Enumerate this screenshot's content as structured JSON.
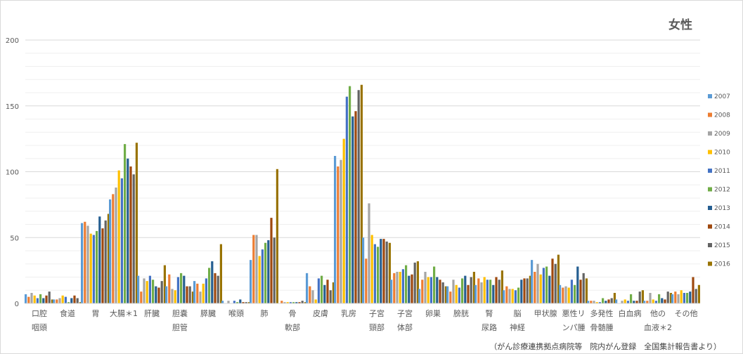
{
  "chart_data": {
    "type": "bar",
    "title": "女性",
    "source_note": "（がん診療連携拠点病院等　院内がん登録　全国集計報告書より）",
    "ylim": [
      0,
      200
    ],
    "yticks": [
      0,
      50,
      100,
      150,
      200
    ],
    "grid": true,
    "legend_position": "right",
    "categories": [
      [
        "口腔",
        "咽頭"
      ],
      [
        "食道"
      ],
      [
        "胃"
      ],
      [
        "大腸＊1"
      ],
      [
        "肝臓"
      ],
      [
        "胆嚢",
        "胆管"
      ],
      [
        "膵臓"
      ],
      [
        "喉頭"
      ],
      [
        "肺"
      ],
      [
        "骨",
        "軟部"
      ],
      [
        "皮膚"
      ],
      [
        "乳房"
      ],
      [
        "子宮",
        "頸部"
      ],
      [
        "子宮",
        "体部"
      ],
      [
        "卵巣"
      ],
      [
        "膀胱"
      ],
      [
        "腎",
        "尿路"
      ],
      [
        "脳",
        "神経"
      ],
      [
        "甲状腺"
      ],
      [
        "悪性リ",
        "ンパ腫"
      ],
      [
        "多発性",
        "骨髄腫"
      ],
      [
        "白血病"
      ],
      [
        "他の",
        "血液＊2"
      ],
      [
        "その他"
      ]
    ],
    "series": [
      {
        "name": "2007",
        "color": "#5B9BD5",
        "values": [
          7,
          3,
          61,
          79,
          21,
          13,
          17,
          2,
          33,
          0,
          23,
          112,
          50,
          18,
          11,
          13,
          14,
          10,
          33,
          14,
          2,
          3,
          2,
          7
        ]
      },
      {
        "name": "2008",
        "color": "#ED7D31",
        "values": [
          5,
          3,
          62,
          83,
          9,
          22,
          15,
          0,
          52,
          2,
          13,
          104,
          34,
          23,
          18,
          9,
          19,
          13,
          24,
          12,
          2,
          0,
          2,
          9
        ]
      },
      {
        "name": "2009",
        "color": "#A5A5A5",
        "values": [
          8,
          4,
          59,
          88,
          19,
          11,
          9,
          2,
          52,
          1,
          10,
          109,
          76,
          24,
          24,
          18,
          16,
          11,
          30,
          13,
          2,
          2,
          8,
          7
        ]
      },
      {
        "name": "2010",
        "color": "#FFC000",
        "values": [
          6,
          6,
          53,
          101,
          17,
          10,
          15,
          0,
          36,
          1,
          3,
          125,
          52,
          24,
          20,
          14,
          20,
          11,
          22,
          12,
          1,
          3,
          3,
          10
        ]
      },
      {
        "name": "2011",
        "color": "#4472C4",
        "values": [
          4,
          5,
          52,
          95,
          21,
          20,
          19,
          2,
          41,
          1,
          19,
          157,
          45,
          26,
          20,
          12,
          18,
          10,
          27,
          18,
          1,
          2,
          2,
          8
        ]
      },
      {
        "name": "2012",
        "color": "#70AD47",
        "values": [
          7,
          1,
          55,
          121,
          18,
          23,
          27,
          1,
          46,
          1,
          21,
          165,
          43,
          29,
          28,
          19,
          18,
          12,
          28,
          14,
          4,
          7,
          7,
          8
        ]
      },
      {
        "name": "2013",
        "color": "#255E91",
        "values": [
          4,
          4,
          66,
          110,
          13,
          21,
          32,
          3,
          48,
          1,
          14,
          142,
          49,
          21,
          20,
          21,
          14,
          18,
          21,
          28,
          2,
          2,
          4,
          9
        ]
      },
      {
        "name": "2014",
        "color": "#9E480E",
        "values": [
          6,
          6,
          57,
          104,
          12,
          13,
          23,
          1,
          65,
          1,
          18,
          146,
          49,
          22,
          18,
          14,
          20,
          19,
          34,
          18,
          3,
          2,
          3,
          20
        ]
      },
      {
        "name": "2015",
        "color": "#636363",
        "values": [
          9,
          4,
          63,
          98,
          17,
          13,
          21,
          1,
          50,
          2,
          10,
          162,
          47,
          31,
          16,
          20,
          18,
          19,
          30,
          23,
          4,
          9,
          9,
          11
        ]
      },
      {
        "name": "2016",
        "color": "#997300",
        "values": [
          3,
          1,
          68,
          122,
          29,
          9,
          45,
          1,
          102,
          1,
          16,
          166,
          46,
          32,
          13,
          24,
          25,
          21,
          37,
          19,
          8,
          10,
          8,
          14
        ]
      }
    ]
  }
}
